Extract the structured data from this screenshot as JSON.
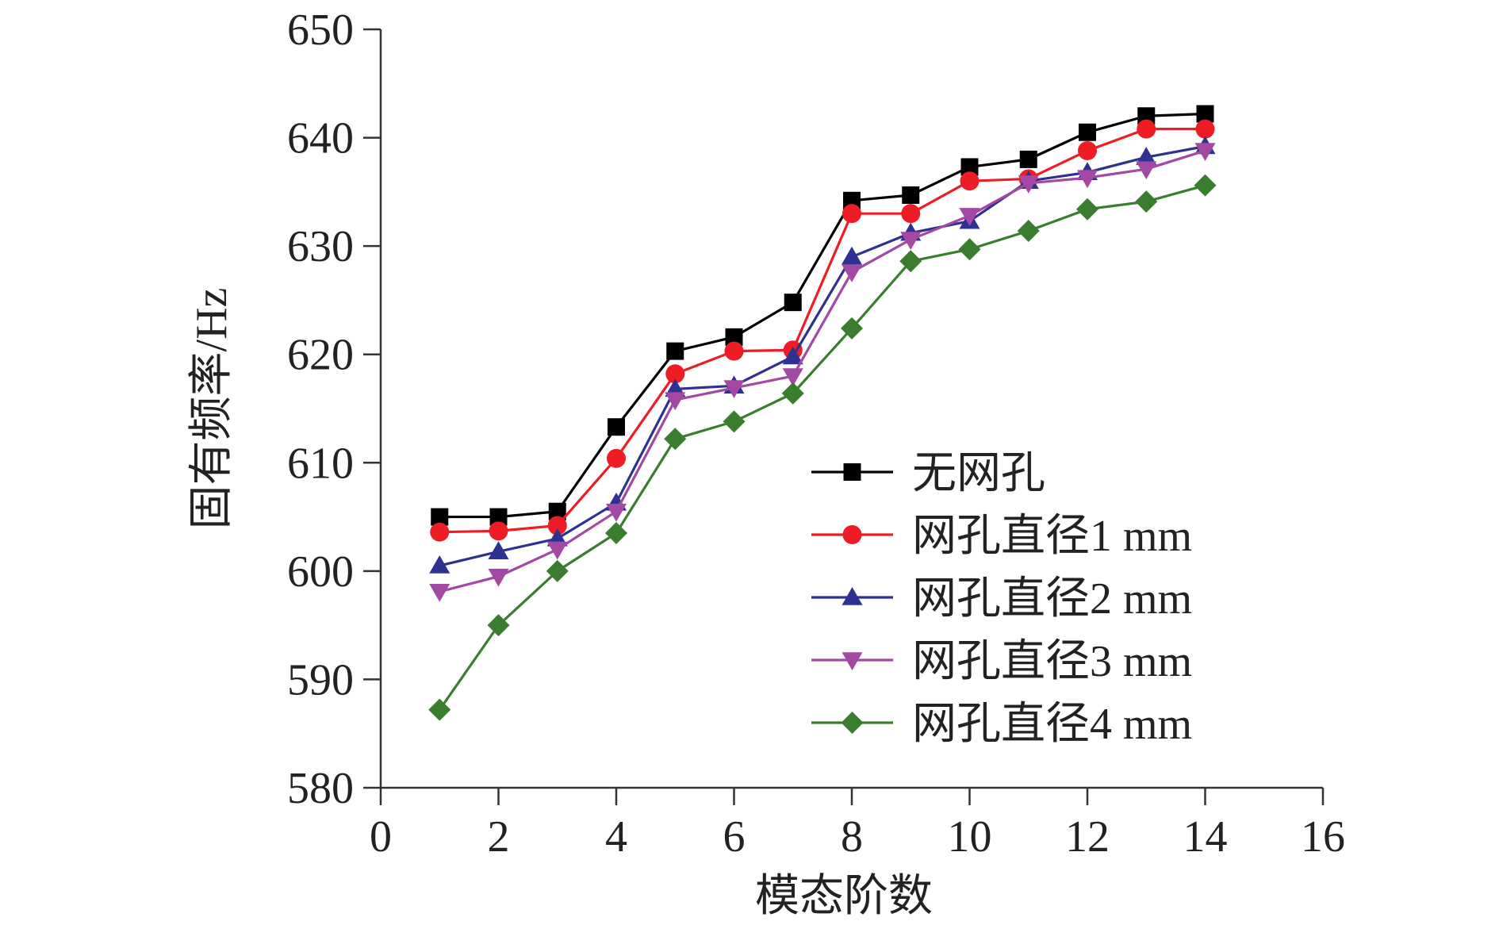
{
  "chart_data": {
    "type": "line",
    "title": "",
    "xlabel": "模态阶数",
    "ylabel": "固有频率/Hz",
    "xlim": [
      0,
      16
    ],
    "ylim": [
      580,
      650
    ],
    "xticks": [
      0,
      2,
      4,
      6,
      8,
      10,
      12,
      14,
      16
    ],
    "yticks": [
      580,
      590,
      600,
      610,
      620,
      630,
      640,
      650
    ],
    "grid": false,
    "legend_position": "lower-right",
    "x": [
      1,
      2,
      3,
      4,
      5,
      6,
      7,
      8,
      9,
      10,
      11,
      12,
      13,
      14
    ],
    "series": [
      {
        "name": "无网孔",
        "color": "#000000",
        "marker": "square",
        "values": [
          605.0,
          605.0,
          605.5,
          613.3,
          620.3,
          621.6,
          624.8,
          634.2,
          634.7,
          637.3,
          638.0,
          640.5,
          642.0,
          642.2
        ]
      },
      {
        "name": "网孔直径1 mm",
        "color": "#ee1c24",
        "marker": "circle",
        "values": [
          603.6,
          603.7,
          604.2,
          610.4,
          618.2,
          620.3,
          620.4,
          633.0,
          633.0,
          636.0,
          636.2,
          638.8,
          640.8,
          640.8
        ]
      },
      {
        "name": "网孔直径2 mm",
        "color": "#2e3192",
        "marker": "triangle-up",
        "values": [
          600.5,
          601.8,
          603.0,
          606.3,
          616.8,
          617.1,
          619.8,
          629.0,
          631.2,
          632.3,
          636.0,
          636.8,
          638.2,
          639.2
        ]
      },
      {
        "name": "网孔直径3 mm",
        "color": "#a349a4",
        "marker": "triangle-down",
        "values": [
          598.1,
          599.5,
          602.0,
          605.5,
          615.8,
          616.9,
          618.0,
          627.6,
          630.6,
          632.8,
          635.8,
          636.3,
          637.1,
          638.8
        ]
      },
      {
        "name": "网孔直径4 mm",
        "color": "#3a7d2e",
        "marker": "diamond",
        "values": [
          587.2,
          595.0,
          600.0,
          603.5,
          612.2,
          613.8,
          616.4,
          622.4,
          628.6,
          629.7,
          631.4,
          633.4,
          634.1,
          635.6
        ]
      }
    ]
  }
}
